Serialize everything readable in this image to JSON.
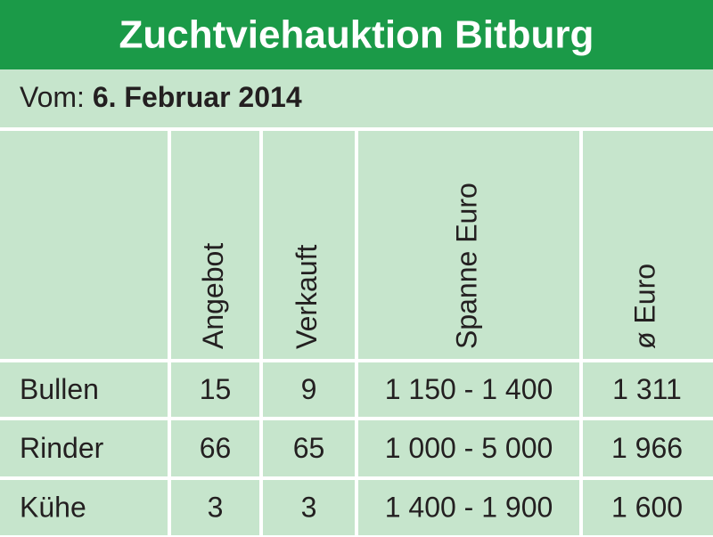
{
  "header": {
    "title": "Zuchtviehauktion Bitburg"
  },
  "subheader": {
    "label": "Vom:",
    "date": "6. Februar 2014"
  },
  "table": {
    "columns": [
      "Angebot",
      "Verkauft",
      "Spanne Euro",
      "ø Euro"
    ],
    "rows": [
      [
        "Bullen",
        "15",
        "9",
        "1 150 - 1 400",
        "1 311"
      ],
      [
        "Rinder",
        "66",
        "65",
        "1 000 - 5 000",
        "1 966"
      ],
      [
        "Kühe",
        "3",
        "3",
        "1 400 - 1 900",
        "1 600"
      ]
    ]
  }
}
